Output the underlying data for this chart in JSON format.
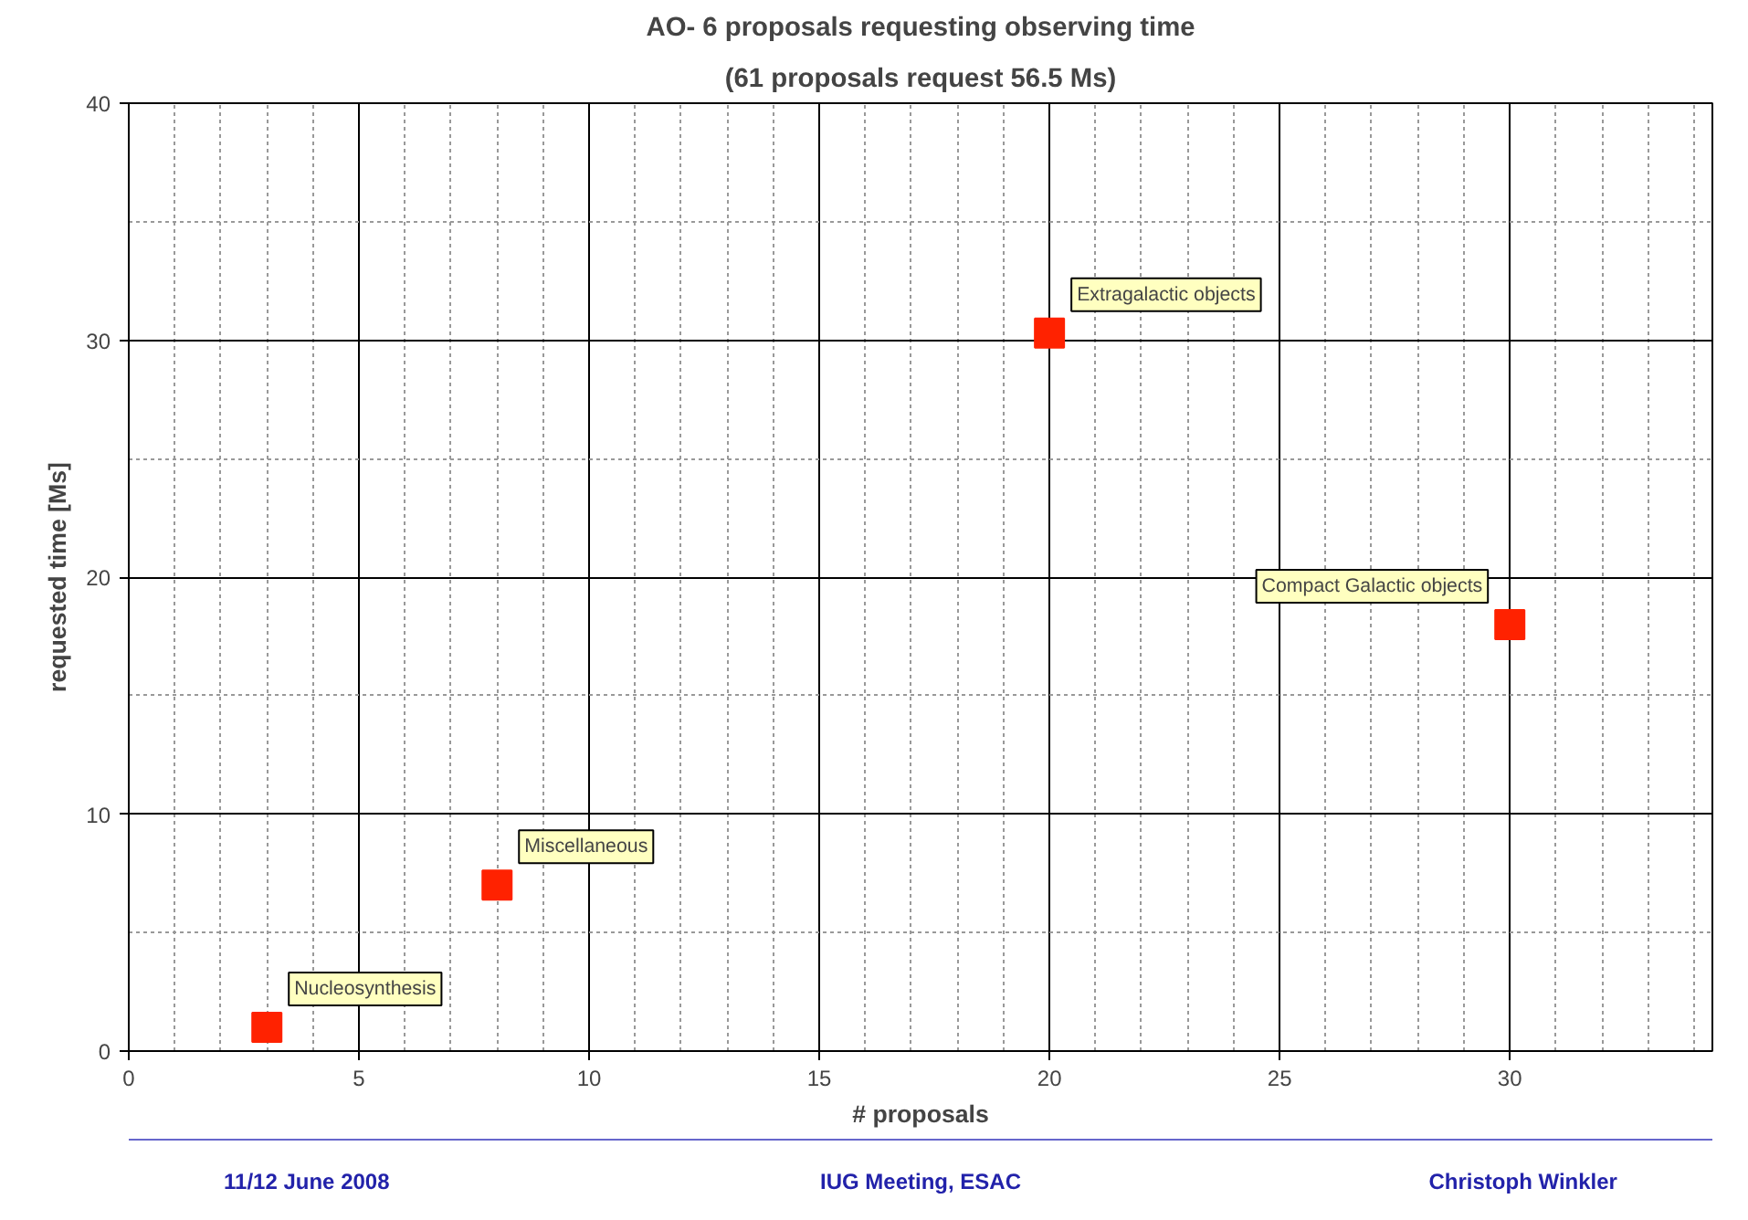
{
  "chart_data": {
    "type": "scatter",
    "title": "AO- 6 proposals requesting observing time",
    "subtitle": "(61 proposals request 56.5 Ms)",
    "xlabel": "# proposals",
    "ylabel": "requested time [Ms]",
    "x": [
      3,
      8,
      20,
      30
    ],
    "series": [
      {
        "color": "#ff2200",
        "values": [
          1.0,
          7.0,
          30.3,
          18.0
        ]
      }
    ],
    "annotations": [
      {
        "text": "Nucleosynthesis",
        "x": 3,
        "y": 1.0
      },
      {
        "text": "Miscellaneous",
        "x": 8,
        "y": 7.0
      },
      {
        "text": "Extragalactic objects",
        "x": 20,
        "y": 30.3
      },
      {
        "text": "Compact Galactic objects",
        "x": 30,
        "y": 18.0
      },
      "11/12 June 2008",
      "IUG Meeting, ESAC",
      "Christoph Winkler"
    ],
    "xlim": [
      0,
      34.4
    ],
    "xticks": [
      0,
      5,
      10,
      15,
      20,
      25,
      30
    ],
    "ylim": [
      0,
      40
    ],
    "yticks": [
      0,
      10,
      20,
      30,
      40
    ],
    "grid": true,
    "marker": "square"
  }
}
